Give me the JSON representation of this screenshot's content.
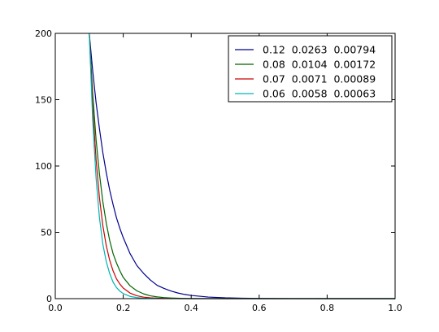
{
  "chart_data": {
    "type": "line",
    "title": "",
    "xlabel": "",
    "ylabel": "",
    "xlim": [
      0.0,
      1.0
    ],
    "ylim": [
      0,
      200
    ],
    "grid": false,
    "legend_position": "top-right",
    "x_ticks": [
      "0.0",
      "0.2",
      "0.4",
      "0.6",
      "0.8",
      "1.0"
    ],
    "y_ticks": [
      "0",
      "50",
      "100",
      "150",
      "200"
    ],
    "series": [
      {
        "name": "0.12  0.0263  0.00794",
        "color": "#00008b",
        "x": [
          0.1,
          0.11,
          0.12,
          0.13,
          0.14,
          0.15,
          0.16,
          0.17,
          0.18,
          0.19,
          0.2,
          0.22,
          0.24,
          0.26,
          0.28,
          0.3,
          0.32,
          0.34,
          0.36,
          0.38,
          0.4,
          0.45,
          0.5,
          0.55,
          0.6,
          0.65,
          0.7,
          0.8,
          0.9,
          1.0
        ],
        "y": [
          200,
          172,
          148,
          128,
          110,
          95,
          82,
          71,
          61,
          53,
          46,
          34,
          25,
          19,
          14,
          10,
          7.7,
          5.8,
          4.3,
          3.2,
          2.4,
          1.2,
          0.6,
          0.3,
          0.15,
          0.08,
          0.04,
          0.01,
          0,
          0
        ]
      },
      {
        "name": "0.08  0.0104  0.00172",
        "color": "#006400",
        "x": [
          0.1,
          0.11,
          0.12,
          0.13,
          0.14,
          0.15,
          0.16,
          0.17,
          0.18,
          0.19,
          0.2,
          0.22,
          0.24,
          0.26,
          0.28,
          0.3,
          0.32,
          0.34,
          0.36,
          0.38,
          0.4,
          0.45,
          0.5,
          0.6,
          1.0
        ],
        "y": [
          200,
          155,
          120,
          94,
          73,
          57,
          44,
          34,
          27,
          21,
          16,
          9.7,
          5.9,
          3.6,
          2.1,
          1.3,
          0.8,
          0.5,
          0.3,
          0.2,
          0.1,
          0.03,
          0.01,
          0,
          0
        ]
      },
      {
        "name": "0.07  0.0071  0.00089",
        "color": "#cc0000",
        "x": [
          0.1,
          0.11,
          0.12,
          0.13,
          0.14,
          0.15,
          0.16,
          0.17,
          0.18,
          0.19,
          0.2,
          0.22,
          0.24,
          0.26,
          0.28,
          0.3,
          0.35,
          0.4,
          0.5,
          1.0
        ],
        "y": [
          200,
          145,
          105,
          76,
          55,
          40,
          29,
          21,
          15,
          11,
          8,
          4.2,
          2.2,
          1.1,
          0.6,
          0.3,
          0.05,
          0.01,
          0,
          0
        ]
      },
      {
        "name": "0.06  0.0058  0.00063",
        "color": "#00b3b3",
        "x": [
          0.1,
          0.11,
          0.12,
          0.13,
          0.14,
          0.15,
          0.16,
          0.17,
          0.18,
          0.19,
          0.2,
          0.22,
          0.24,
          0.26,
          0.3,
          0.4,
          1.0
        ],
        "y": [
          200,
          135,
          91,
          61,
          41,
          28,
          19,
          12.5,
          8.4,
          5.7,
          3.8,
          1.7,
          0.8,
          0.35,
          0.07,
          0,
          0
        ]
      }
    ]
  }
}
